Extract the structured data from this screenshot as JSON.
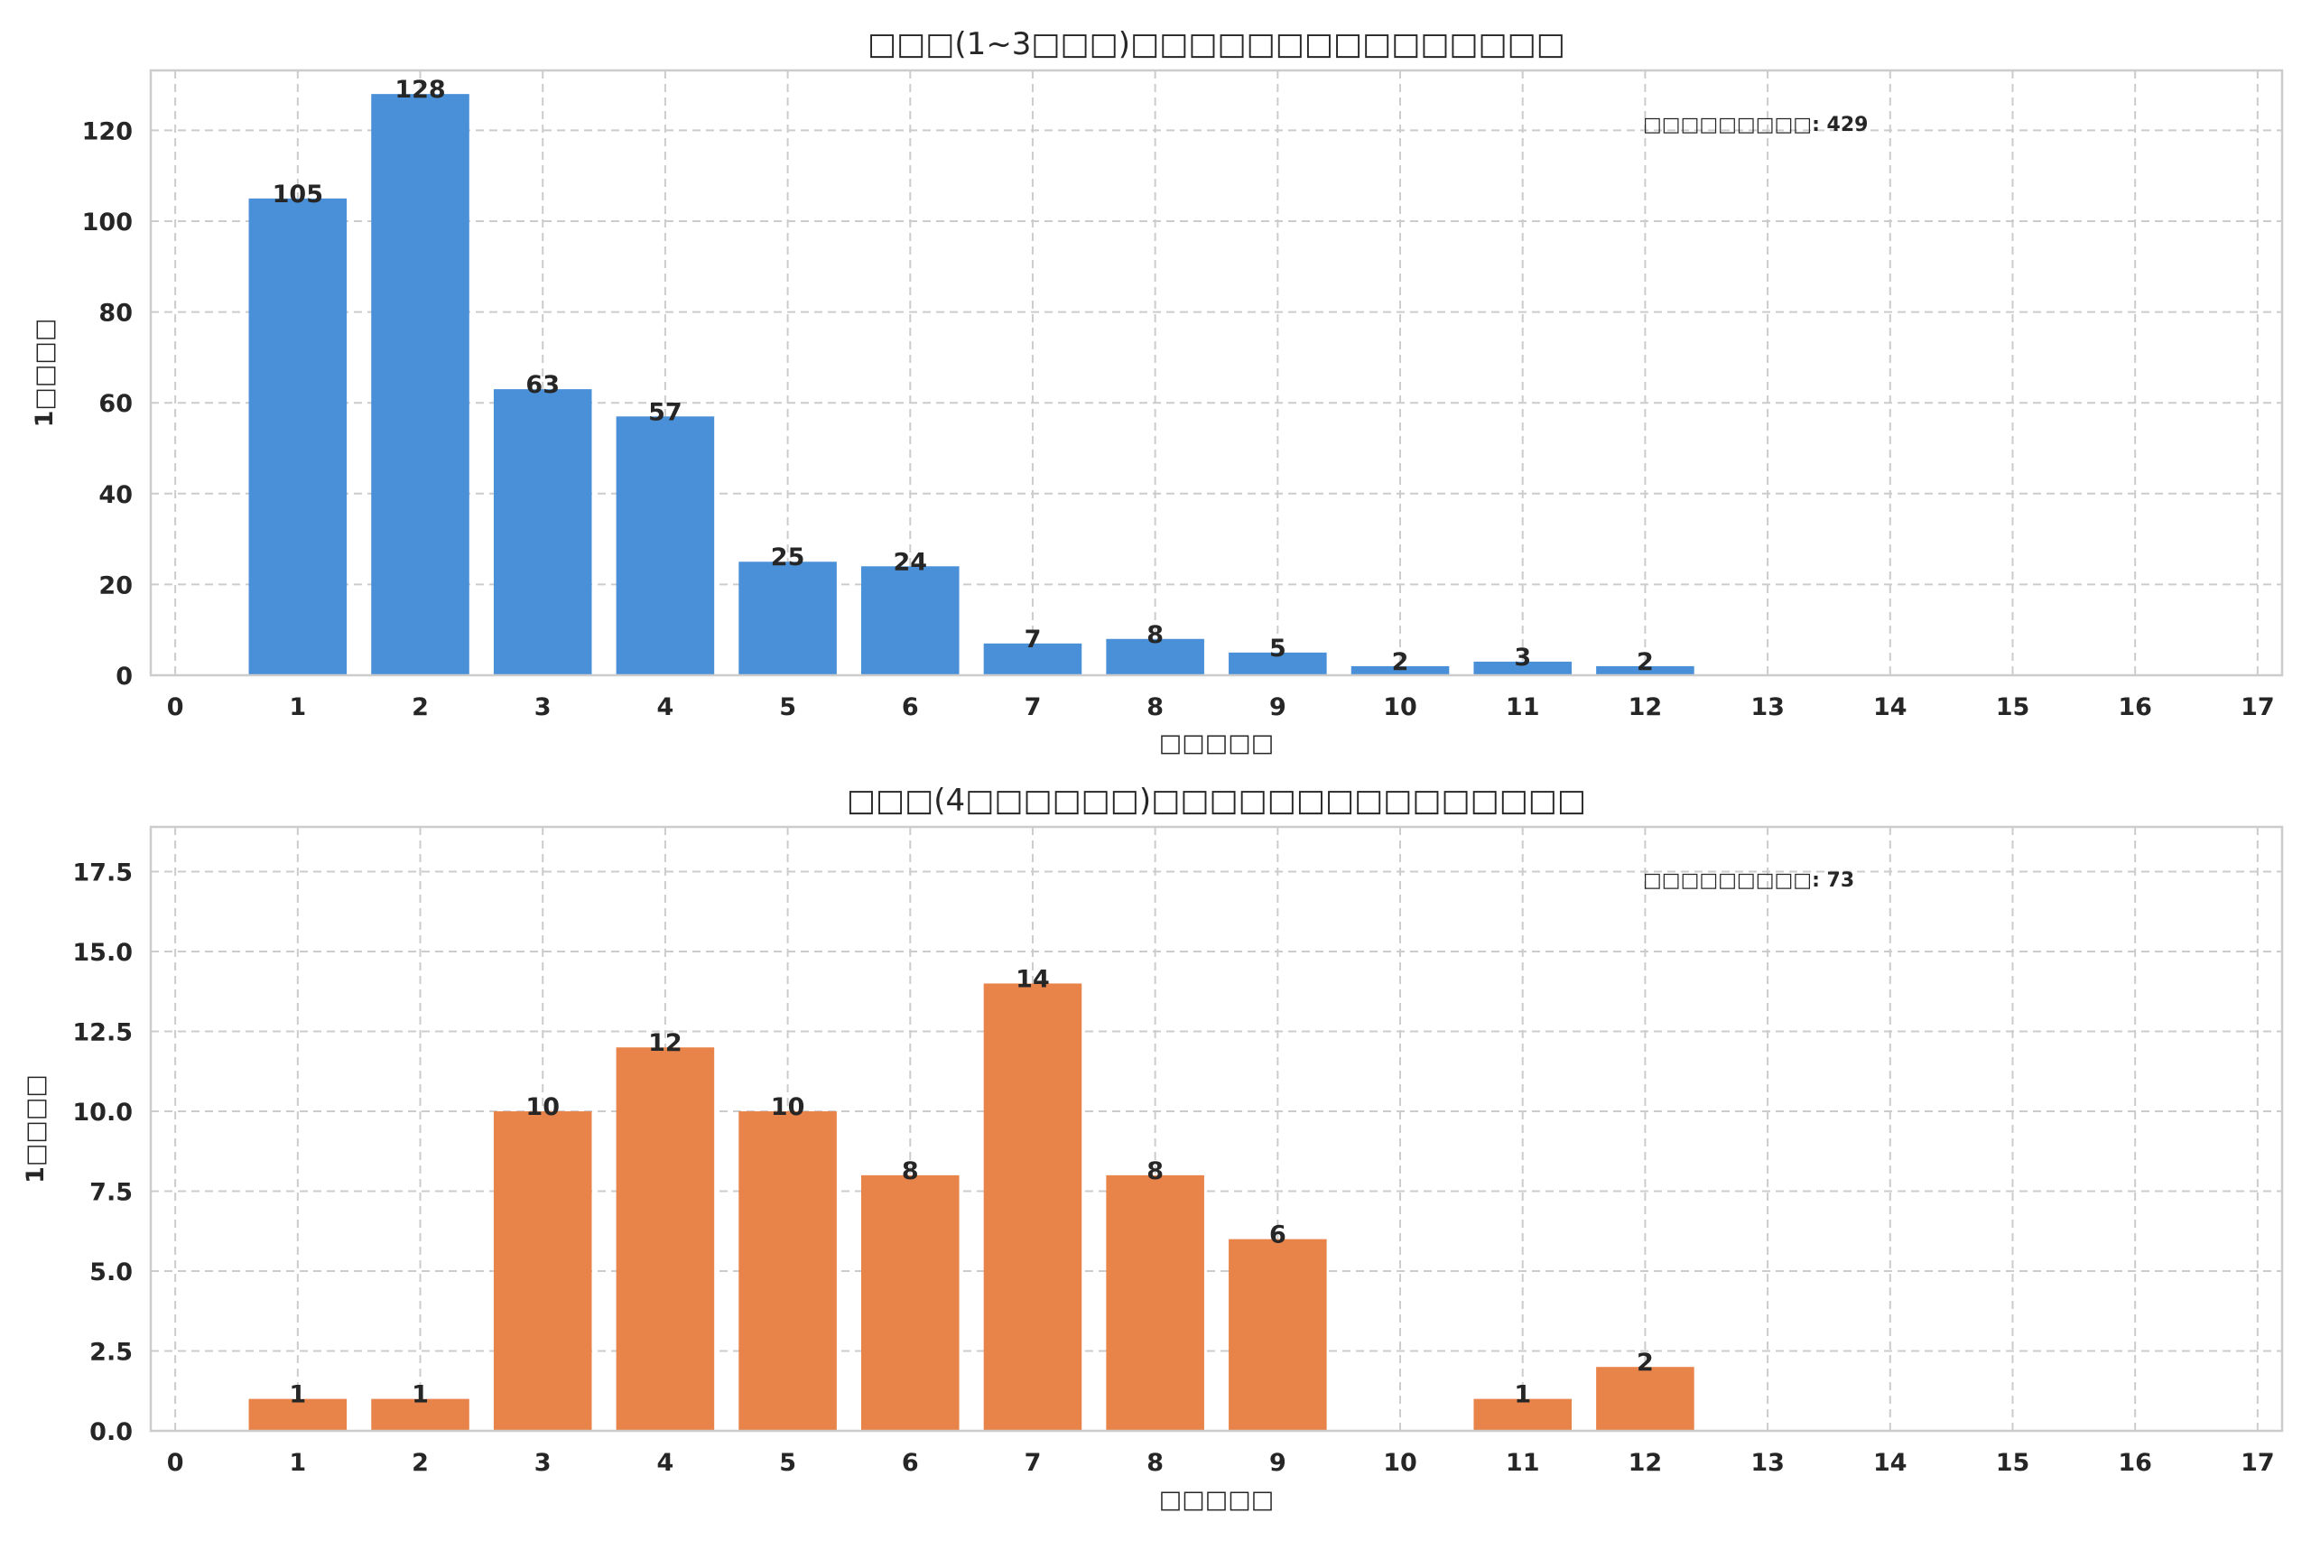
{
  "chart_data": [
    {
      "type": "bar",
      "title": "□□□(1~3□□□)□□□□□□□□□□□□□□□",
      "xlabel": "□□□□□",
      "ylabel": "1□□□□",
      "annotation": "□□□□□□□□□: 429",
      "x": [
        1,
        2,
        3,
        4,
        5,
        6,
        7,
        8,
        9,
        10,
        11,
        12
      ],
      "values": [
        105,
        128,
        63,
        57,
        25,
        24,
        7,
        8,
        5,
        2,
        3,
        2
      ],
      "xticks": [
        "0",
        "1",
        "2",
        "3",
        "4",
        "5",
        "6",
        "7",
        "8",
        "9",
        "10",
        "11",
        "12",
        "13",
        "14",
        "15",
        "16",
        "17"
      ],
      "yticks": [
        "0",
        "20",
        "40",
        "60",
        "80",
        "100",
        "120"
      ],
      "ytick_values": [
        0,
        20,
        40,
        60,
        80,
        100,
        120
      ],
      "xlim": [
        -0.2,
        17.2
      ],
      "ylim": [
        0,
        133.2
      ],
      "grid": true,
      "color": "#4a90d9"
    },
    {
      "type": "bar",
      "title": "□□□(4□□□□□□)□□□□□□□□□□□□□□□",
      "xlabel": "□□□□□",
      "ylabel": "1□□□□",
      "annotation": "□□□□□□□□□: 73",
      "x": [
        1,
        2,
        3,
        4,
        5,
        6,
        7,
        8,
        9,
        10,
        11,
        12
      ],
      "values": [
        1,
        1,
        10,
        12,
        10,
        8,
        14,
        8,
        6,
        0,
        1,
        2
      ],
      "xticks": [
        "0",
        "1",
        "2",
        "3",
        "4",
        "5",
        "6",
        "7",
        "8",
        "9",
        "10",
        "11",
        "12",
        "13",
        "14",
        "15",
        "16",
        "17"
      ],
      "yticks": [
        "0.0",
        "2.5",
        "5.0",
        "7.5",
        "10.0",
        "12.5",
        "15.0",
        "17.5"
      ],
      "ytick_values": [
        0,
        2.5,
        5,
        7.5,
        10,
        12.5,
        15,
        17.5
      ],
      "xlim": [
        -0.2,
        17.2
      ],
      "ylim": [
        0,
        18.9
      ],
      "grid": true,
      "color": "#e8844a"
    }
  ]
}
